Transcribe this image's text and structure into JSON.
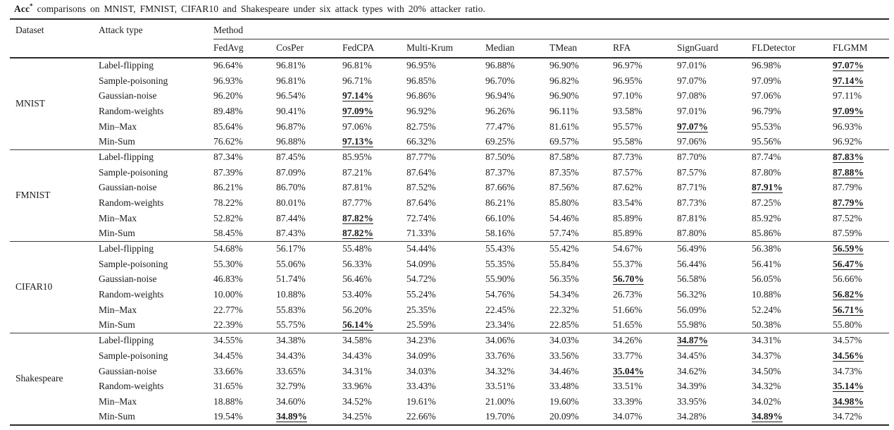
{
  "caption": {
    "metric_label": "Acc",
    "superscript": "*",
    "text_rest": " comparisons on MNIST, FMNIST, CIFAR10 and Shakespeare under six attack types with 20% attacker ratio."
  },
  "table": {
    "headers": {
      "dataset": "Dataset",
      "attack_type": "Attack type",
      "method_group": "Method"
    },
    "method_headers": [
      "FedAvg",
      "CosPer",
      "FedCPA",
      "Multi-Krum",
      "Median",
      "TMean",
      "RFA",
      "SignGuard",
      "FLDetector",
      "FLGMM"
    ],
    "sections": [
      {
        "dataset": "MNIST",
        "rows": [
          {
            "attack": "Label-flipping",
            "values": [
              "96.64%",
              "96.81%",
              "96.81%",
              "96.95%",
              "96.88%",
              "96.90%",
              "96.97%",
              "97.01%",
              "96.98%",
              "97.07%"
            ],
            "best": [
              9
            ]
          },
          {
            "attack": "Sample-poisoning",
            "values": [
              "96.93%",
              "96.81%",
              "96.71%",
              "96.85%",
              "96.70%",
              "96.82%",
              "96.95%",
              "97.07%",
              "97.09%",
              "97.14%"
            ],
            "best": [
              9
            ]
          },
          {
            "attack": "Gaussian-noise",
            "values": [
              "96.20%",
              "96.54%",
              "97.14%",
              "96.86%",
              "96.94%",
              "96.90%",
              "97.10%",
              "97.08%",
              "97.06%",
              "97.11%"
            ],
            "best": [
              2
            ]
          },
          {
            "attack": "Random-weights",
            "values": [
              "89.48%",
              "90.41%",
              "97.09%",
              "96.92%",
              "96.26%",
              "96.11%",
              "93.58%",
              "97.01%",
              "96.79%",
              "97.09%"
            ],
            "best": [
              2,
              9
            ]
          },
          {
            "attack": "Min–Max",
            "values": [
              "85.64%",
              "96.87%",
              "97.06%",
              "82.75%",
              "77.47%",
              "81.61%",
              "95.57%",
              "97.07%",
              "95.53%",
              "96.93%"
            ],
            "best": [
              7
            ]
          },
          {
            "attack": "Min-Sum",
            "values": [
              "76.62%",
              "96.88%",
              "97.13%",
              "66.32%",
              "69.25%",
              "69.57%",
              "95.58%",
              "97.06%",
              "95.56%",
              "96.92%"
            ],
            "best": [
              2
            ]
          }
        ]
      },
      {
        "dataset": "FMNIST",
        "rows": [
          {
            "attack": "Label-flipping",
            "values": [
              "87.34%",
              "87.45%",
              "85.95%",
              "87.77%",
              "87.50%",
              "87.58%",
              "87.73%",
              "87.70%",
              "87.74%",
              "87.83%"
            ],
            "best": [
              9
            ]
          },
          {
            "attack": "Sample-poisoning",
            "values": [
              "87.39%",
              "87.09%",
              "87.21%",
              "87.64%",
              "87.37%",
              "87.35%",
              "87.57%",
              "87.57%",
              "87.80%",
              "87.88%"
            ],
            "best": [
              9
            ]
          },
          {
            "attack": "Gaussian-noise",
            "values": [
              "86.21%",
              "86.70%",
              "87.81%",
              "87.52%",
              "87.66%",
              "87.56%",
              "87.62%",
              "87.71%",
              "87.91%",
              "87.79%"
            ],
            "best": [
              8
            ]
          },
          {
            "attack": "Random-weights",
            "values": [
              "78.22%",
              "80.01%",
              "87.77%",
              "87.64%",
              "86.21%",
              "85.80%",
              "83.54%",
              "87.73%",
              "87.25%",
              "87.79%"
            ],
            "best": [
              9
            ]
          },
          {
            "attack": "Min–Max",
            "values": [
              "52.82%",
              "87.44%",
              "87.82%",
              "72.74%",
              "66.10%",
              "54.46%",
              "85.89%",
              "87.81%",
              "85.92%",
              "87.52%"
            ],
            "best": [
              2
            ]
          },
          {
            "attack": "Min-Sum",
            "values": [
              "58.45%",
              "87.43%",
              "87.82%",
              "71.33%",
              "58.16%",
              "57.74%",
              "85.89%",
              "87.80%",
              "85.86%",
              "87.59%"
            ],
            "best": [
              2
            ]
          }
        ]
      },
      {
        "dataset": "CIFAR10",
        "rows": [
          {
            "attack": "Label-flipping",
            "values": [
              "54.68%",
              "56.17%",
              "55.48%",
              "54.44%",
              "55.43%",
              "55.42%",
              "54.67%",
              "56.49%",
              "56.38%",
              "56.59%"
            ],
            "best": [
              9
            ]
          },
          {
            "attack": "Sample-poisoning",
            "values": [
              "55.30%",
              "55.06%",
              "56.33%",
              "54.09%",
              "55.35%",
              "55.84%",
              "55.37%",
              "56.44%",
              "56.41%",
              "56.47%"
            ],
            "best": [
              9
            ]
          },
          {
            "attack": "Gaussian-noise",
            "values": [
              "46.83%",
              "51.74%",
              "56.46%",
              "54.72%",
              "55.90%",
              "56.35%",
              "56.70%",
              "56.58%",
              "56.05%",
              "56.66%"
            ],
            "best": [
              6
            ]
          },
          {
            "attack": "Random-weights",
            "values": [
              "10.00%",
              "10.88%",
              "53.40%",
              "55.24%",
              "54.76%",
              "54.34%",
              "26.73%",
              "56.32%",
              "10.88%",
              "56.82%"
            ],
            "best": [
              9
            ]
          },
          {
            "attack": "Min–Max",
            "values": [
              "22.77%",
              "55.83%",
              "56.20%",
              "25.35%",
              "22.45%",
              "22.32%",
              "51.66%",
              "56.09%",
              "52.24%",
              "56.71%"
            ],
            "best": [
              9
            ]
          },
          {
            "attack": "Min-Sum",
            "values": [
              "22.39%",
              "55.75%",
              "56.14%",
              "25.59%",
              "23.34%",
              "22.85%",
              "51.65%",
              "55.98%",
              "50.38%",
              "55.80%"
            ],
            "best": [
              2
            ]
          }
        ]
      },
      {
        "dataset": "Shakespeare",
        "rows": [
          {
            "attack": "Label-flipping",
            "values": [
              "34.55%",
              "34.38%",
              "34.58%",
              "34.23%",
              "34.06%",
              "34.03%",
              "34.26%",
              "34.87%",
              "34.31%",
              "34.57%"
            ],
            "best": [
              7
            ]
          },
          {
            "attack": "Sample-poisoning",
            "values": [
              "34.45%",
              "34.43%",
              "34.43%",
              "34.09%",
              "33.76%",
              "33.56%",
              "33.77%",
              "34.45%",
              "34.37%",
              "34.56%"
            ],
            "best": [
              9
            ]
          },
          {
            "attack": "Gaussian-noise",
            "values": [
              "33.66%",
              "33.65%",
              "34.31%",
              "34.03%",
              "34.32%",
              "34.46%",
              "35.04%",
              "34.62%",
              "34.50%",
              "34.73%"
            ],
            "best": [
              6
            ]
          },
          {
            "attack": "Random-weights",
            "values": [
              "31.65%",
              "32.79%",
              "33.96%",
              "33.43%",
              "33.51%",
              "33.48%",
              "33.51%",
              "34.39%",
              "34.32%",
              "35.14%"
            ],
            "best": [
              9
            ]
          },
          {
            "attack": "Min–Max",
            "values": [
              "18.88%",
              "34.60%",
              "34.52%",
              "19.61%",
              "21.00%",
              "19.60%",
              "33.39%",
              "33.95%",
              "34.02%",
              "34.98%"
            ],
            "best": [
              9
            ]
          },
          {
            "attack": "Min-Sum",
            "values": [
              "19.54%",
              "34.89%",
              "34.25%",
              "22.66%",
              "19.70%",
              "20.09%",
              "34.07%",
              "34.28%",
              "34.89%",
              "34.72%"
            ],
            "best": [
              1,
              8
            ]
          }
        ]
      }
    ]
  }
}
